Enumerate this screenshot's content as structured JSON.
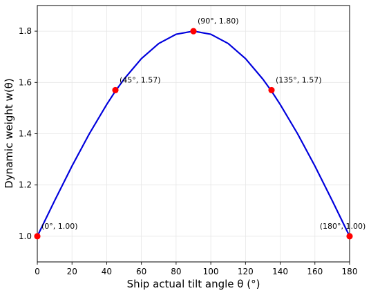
{
  "chart_data": {
    "type": "line",
    "title": "",
    "xlabel": "Ship actual tilt angle θ (°)",
    "ylabel": "Dynamic weight w(θ)",
    "xlim": [
      0,
      180
    ],
    "ylim": [
      0.9,
      1.9
    ],
    "x_ticks": [
      0,
      20,
      40,
      60,
      80,
      100,
      120,
      140,
      160,
      180
    ],
    "y_ticks": [
      1.0,
      1.2,
      1.4,
      1.6,
      1.8
    ],
    "x_tick_labels": [
      "0",
      "20",
      "40",
      "60",
      "80",
      "100",
      "120",
      "140",
      "160",
      "180"
    ],
    "y_tick_labels": [
      "1.0",
      "1.2",
      "1.4",
      "1.6",
      "1.8"
    ],
    "grid": true,
    "series": [
      {
        "color": "#0000dd",
        "x": [
          0,
          10,
          20,
          30,
          40,
          45,
          50,
          60,
          70,
          80,
          90,
          100,
          110,
          120,
          130,
          135,
          140,
          150,
          160,
          170,
          180
        ],
        "y": [
          1.0,
          1.139,
          1.274,
          1.4,
          1.514,
          1.566,
          1.613,
          1.693,
          1.752,
          1.788,
          1.8,
          1.788,
          1.752,
          1.693,
          1.613,
          1.566,
          1.514,
          1.4,
          1.274,
          1.139,
          1.0
        ]
      }
    ],
    "highlighted_points": [
      {
        "x": 0,
        "y": 1.0,
        "label": "(0°, 1.00)"
      },
      {
        "x": 45,
        "y": 1.57,
        "label": "(45°, 1.57)"
      },
      {
        "x": 90,
        "y": 1.8,
        "label": "(90°, 1.80)"
      },
      {
        "x": 135,
        "y": 1.57,
        "label": "(135°, 1.57)"
      },
      {
        "x": 180,
        "y": 1.0,
        "label": "(180°, 1.00)"
      }
    ],
    "marker_color": "#ff0000"
  }
}
